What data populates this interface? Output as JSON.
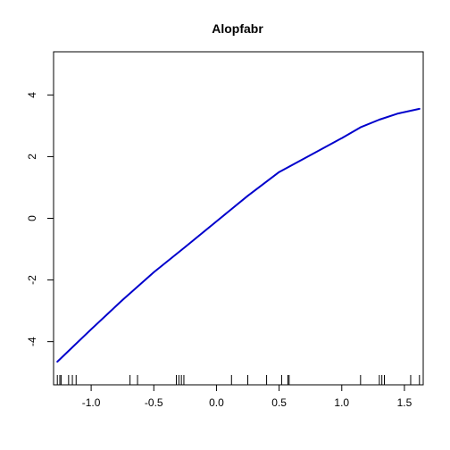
{
  "chart_data": {
    "type": "line",
    "title": "Alopfabr",
    "xlabel": "",
    "ylabel": "",
    "xlim": [
      -1.3,
      1.65
    ],
    "ylim": [
      -5.4,
      5.4
    ],
    "grid": false,
    "x_ticks": [
      -1.0,
      -0.5,
      0.0,
      0.5,
      1.0,
      1.5
    ],
    "x_tick_labels": [
      "-1.0",
      "-0.5",
      "0.0",
      "0.5",
      "1.0",
      "1.5"
    ],
    "y_ticks": [
      -4,
      -2,
      0,
      2,
      4
    ],
    "y_tick_labels": [
      "-4",
      "-2",
      "0",
      "2",
      "4"
    ],
    "series": [
      {
        "color": "#0000cc",
        "x": [
          -1.27,
          -1.0,
          -0.75,
          -0.5,
          -0.25,
          0.0,
          0.25,
          0.5,
          0.75,
          1.0,
          1.15,
          1.3,
          1.45,
          1.62
        ],
        "y": [
          -4.65,
          -3.6,
          -2.65,
          -1.75,
          -0.93,
          -0.1,
          0.73,
          1.5,
          2.05,
          2.6,
          2.95,
          3.2,
          3.4,
          3.55
        ]
      }
    ],
    "rug": [
      -1.27,
      -1.25,
      -1.24,
      -1.18,
      -1.15,
      -1.12,
      -0.69,
      -0.63,
      -0.32,
      -0.3,
      -0.28,
      -0.26,
      0.12,
      0.25,
      0.4,
      0.52,
      0.57,
      0.58,
      1.15,
      1.3,
      1.32,
      1.34,
      1.55,
      1.62
    ]
  }
}
